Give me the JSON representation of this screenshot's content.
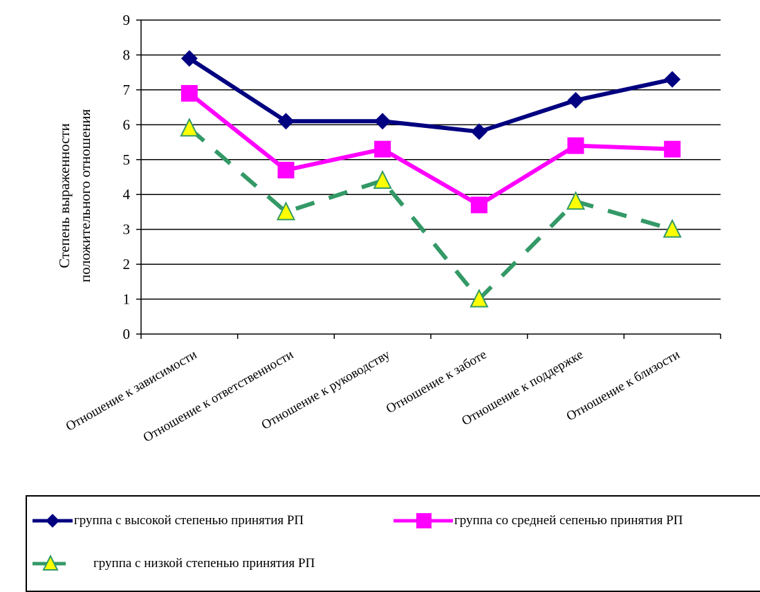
{
  "chart_data": {
    "type": "line",
    "categories": [
      "Отношение к зависимости",
      "Отношение к ответственности",
      "Отношение к руководству",
      "Отношение к заботе",
      "Отношение к поддержке",
      "Отношение к близости"
    ],
    "series": [
      {
        "name": "группа с высокой степенью принятия РП",
        "values": [
          7.9,
          6.1,
          6.1,
          5.8,
          6.7,
          7.3
        ],
        "color": "#000080",
        "marker": "diamond",
        "line_style": "solid"
      },
      {
        "name": "группа со средней сепенью принятия РП",
        "values": [
          6.9,
          4.7,
          5.3,
          3.7,
          5.4,
          5.3
        ],
        "color": "#ff00ff",
        "marker": "square",
        "line_style": "solid"
      },
      {
        "name": "группа с низкой степенью принятия РП",
        "values": [
          5.9,
          3.5,
          4.4,
          1.0,
          3.8,
          3.0
        ],
        "color": "#339966",
        "marker": "triangle",
        "marker_fill": "#ffff00",
        "line_style": "dashed"
      }
    ],
    "ylabel_lines": [
      "Степень выраженности",
      "положительного отношения"
    ],
    "ylim": [
      0,
      9
    ],
    "yticks": [
      "0",
      "1",
      "2",
      "3",
      "4",
      "5",
      "6",
      "7",
      "8",
      "9"
    ],
    "grid": true,
    "legend_position": "bottom"
  }
}
